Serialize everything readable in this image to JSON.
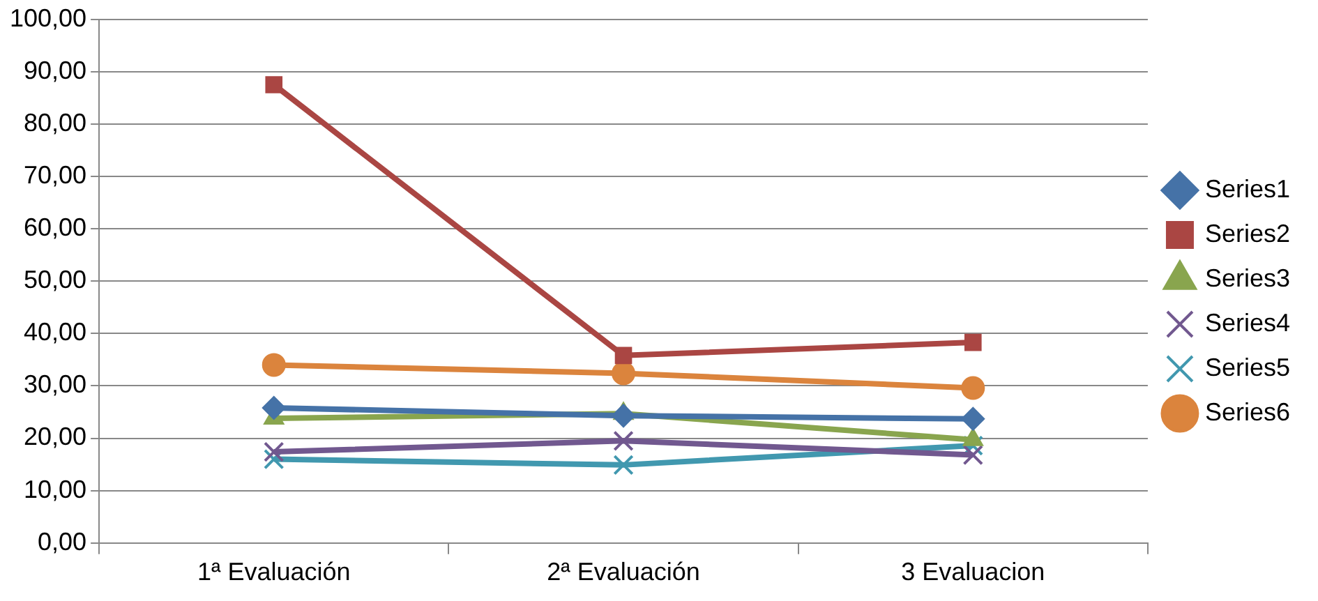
{
  "chart_data": {
    "type": "line",
    "categories": [
      "1ª Evaluación",
      "2ª Evaluación",
      "3 Evaluacion"
    ],
    "series": [
      {
        "name": "Series1",
        "color": "#4572a7",
        "marker": "diamond",
        "values": [
          25.8,
          24.3,
          23.7
        ]
      },
      {
        "name": "Series2",
        "color": "#aa4643",
        "marker": "square",
        "values": [
          87.5,
          35.8,
          38.3
        ]
      },
      {
        "name": "Series3",
        "color": "#89a54e",
        "marker": "triangle",
        "values": [
          23.8,
          24.7,
          19.7
        ]
      },
      {
        "name": "Series4",
        "color": "#71588f",
        "marker": "cross",
        "values": [
          17.4,
          19.5,
          16.8
        ]
      },
      {
        "name": "Series5",
        "color": "#4198af",
        "marker": "cross",
        "values": [
          16.0,
          14.9,
          18.6
        ]
      },
      {
        "name": "Series6",
        "color": "#db843d",
        "marker": "circle",
        "values": [
          34.0,
          32.4,
          29.6
        ]
      }
    ],
    "ylim": [
      0,
      100
    ],
    "yticks": [
      {
        "value": 0,
        "label": "0,00"
      },
      {
        "value": 10,
        "label": "10,00"
      },
      {
        "value": 20,
        "label": "20,00"
      },
      {
        "value": 30,
        "label": "30,00"
      },
      {
        "value": 40,
        "label": "40,00"
      },
      {
        "value": 50,
        "label": "50,00"
      },
      {
        "value": 60,
        "label": "60,00"
      },
      {
        "value": 70,
        "label": "70,00"
      },
      {
        "value": 80,
        "label": "80,00"
      },
      {
        "value": 90,
        "label": "90,00"
      },
      {
        "value": 100,
        "label": "100,00"
      }
    ],
    "grid": "y",
    "legend": "right",
    "line_style": "solid"
  }
}
